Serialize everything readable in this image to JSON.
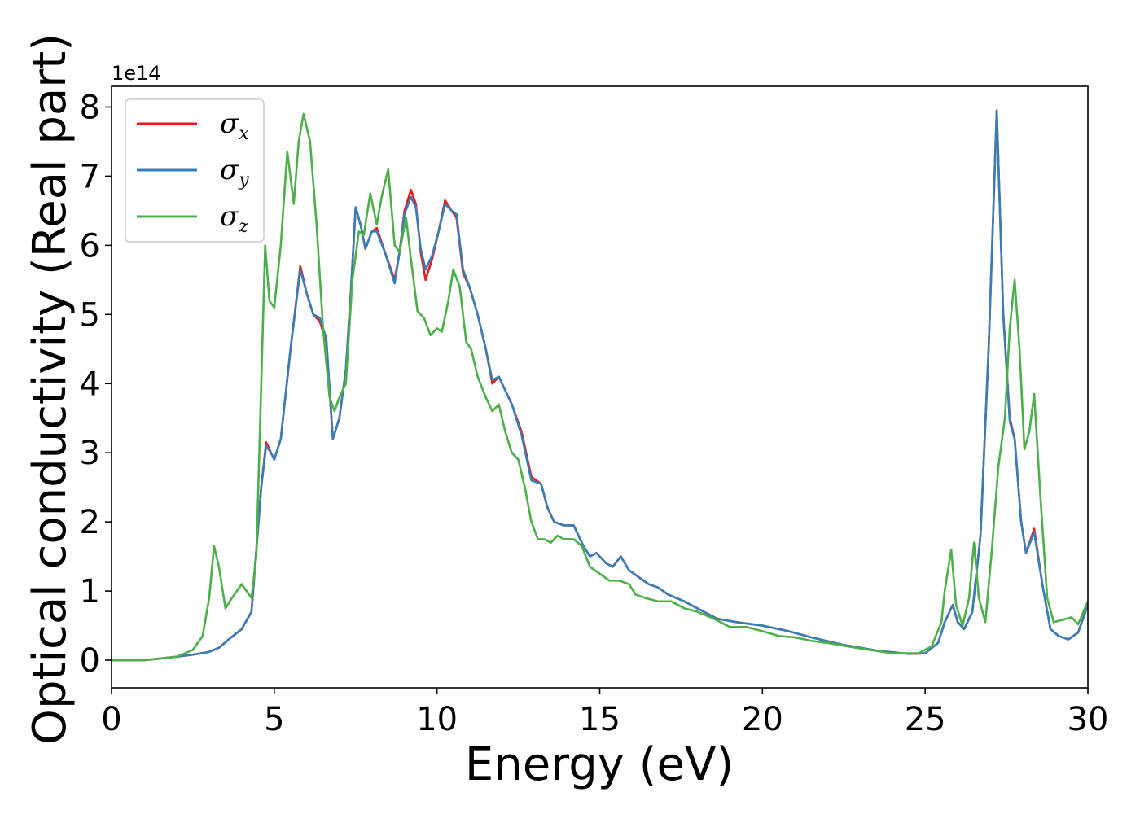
{
  "chart_data": {
    "type": "line",
    "xlabel": "Energy (eV)",
    "ylabel": "Optical conductivity (Real part)",
    "y_offset_label": "1e14",
    "y_multiplier": 100000000000000.0,
    "xlim": [
      0,
      30
    ],
    "ylim": [
      -0.4,
      8.3
    ],
    "x_ticks": [
      0,
      5,
      10,
      15,
      20,
      25,
      30
    ],
    "x_tick_labels": [
      "0",
      "5",
      "10",
      "15",
      "20",
      "25",
      "30"
    ],
    "y_ticks": [
      0,
      1,
      2,
      3,
      4,
      5,
      6,
      7,
      8
    ],
    "y_tick_labels": [
      "0",
      "1",
      "2",
      "3",
      "4",
      "5",
      "6",
      "7",
      "8"
    ],
    "grid": false,
    "legend_position": "top-left",
    "series": [
      {
        "name": "σx",
        "symbol": "σ",
        "subscript": "x",
        "color": "#e41a1c",
        "points": [
          [
            0,
            0
          ],
          [
            1,
            0
          ],
          [
            2,
            0.05
          ],
          [
            2.5,
            0.08
          ],
          [
            3,
            0.12
          ],
          [
            3.3,
            0.18
          ],
          [
            3.6,
            0.3
          ],
          [
            4,
            0.45
          ],
          [
            4.3,
            0.7
          ],
          [
            4.6,
            2.5
          ],
          [
            4.75,
            3.15
          ],
          [
            4.9,
            3.0
          ],
          [
            5.0,
            2.9
          ],
          [
            5.2,
            3.2
          ],
          [
            5.5,
            4.5
          ],
          [
            5.8,
            5.7
          ],
          [
            6.0,
            5.3
          ],
          [
            6.2,
            5.0
          ],
          [
            6.4,
            4.9
          ],
          [
            6.6,
            4.6
          ],
          [
            6.8,
            3.2
          ],
          [
            7.0,
            3.5
          ],
          [
            7.2,
            4.2
          ],
          [
            7.35,
            5.3
          ],
          [
            7.5,
            6.55
          ],
          [
            7.65,
            6.3
          ],
          [
            7.8,
            5.95
          ],
          [
            8.0,
            6.2
          ],
          [
            8.15,
            6.25
          ],
          [
            8.4,
            5.9
          ],
          [
            8.7,
            5.5
          ],
          [
            8.85,
            5.9
          ],
          [
            9.0,
            6.5
          ],
          [
            9.2,
            6.8
          ],
          [
            9.35,
            6.6
          ],
          [
            9.5,
            5.9
          ],
          [
            9.65,
            5.5
          ],
          [
            9.85,
            5.8
          ],
          [
            10.05,
            6.2
          ],
          [
            10.25,
            6.65
          ],
          [
            10.45,
            6.5
          ],
          [
            10.6,
            6.4
          ],
          [
            10.8,
            5.6
          ],
          [
            11.0,
            5.4
          ],
          [
            11.25,
            5.0
          ],
          [
            11.5,
            4.5
          ],
          [
            11.7,
            4.0
          ],
          [
            11.9,
            4.1
          ],
          [
            12.1,
            3.9
          ],
          [
            12.3,
            3.7
          ],
          [
            12.6,
            3.3
          ],
          [
            12.9,
            2.65
          ],
          [
            13.2,
            2.55
          ],
          [
            13.4,
            2.2
          ],
          [
            13.6,
            2.0
          ],
          [
            13.9,
            1.95
          ],
          [
            14.2,
            1.95
          ],
          [
            14.5,
            1.65
          ],
          [
            14.7,
            1.5
          ],
          [
            14.9,
            1.55
          ],
          [
            15.2,
            1.4
          ],
          [
            15.4,
            1.35
          ],
          [
            15.65,
            1.5
          ],
          [
            15.9,
            1.3
          ],
          [
            16.2,
            1.2
          ],
          [
            16.5,
            1.1
          ],
          [
            16.8,
            1.05
          ],
          [
            17.1,
            0.95
          ],
          [
            17.6,
            0.85
          ],
          [
            18.0,
            0.75
          ],
          [
            18.6,
            0.6
          ],
          [
            19.2,
            0.55
          ],
          [
            20.0,
            0.5
          ],
          [
            20.8,
            0.42
          ],
          [
            21.5,
            0.33
          ],
          [
            22.5,
            0.22
          ],
          [
            23.5,
            0.14
          ],
          [
            24.5,
            0.09
          ],
          [
            25.0,
            0.1
          ],
          [
            25.4,
            0.25
          ],
          [
            25.6,
            0.55
          ],
          [
            25.85,
            0.8
          ],
          [
            26.0,
            0.55
          ],
          [
            26.2,
            0.45
          ],
          [
            26.45,
            0.7
          ],
          [
            26.7,
            1.8
          ],
          [
            26.95,
            4.5
          ],
          [
            27.2,
            7.95
          ],
          [
            27.4,
            5.0
          ],
          [
            27.6,
            3.5
          ],
          [
            27.75,
            3.2
          ],
          [
            27.95,
            2.0
          ],
          [
            28.1,
            1.55
          ],
          [
            28.35,
            1.9
          ],
          [
            28.6,
            1.1
          ],
          [
            28.85,
            0.45
          ],
          [
            29.1,
            0.35
          ],
          [
            29.4,
            0.3
          ],
          [
            29.7,
            0.4
          ],
          [
            30.0,
            0.8
          ]
        ]
      },
      {
        "name": "σy",
        "symbol": "σ",
        "subscript": "y",
        "color": "#377eb8",
        "points": [
          [
            0,
            0
          ],
          [
            1,
            0
          ],
          [
            2,
            0.05
          ],
          [
            2.5,
            0.08
          ],
          [
            3,
            0.12
          ],
          [
            3.3,
            0.18
          ],
          [
            3.6,
            0.3
          ],
          [
            4,
            0.45
          ],
          [
            4.3,
            0.7
          ],
          [
            4.6,
            2.5
          ],
          [
            4.75,
            3.1
          ],
          [
            4.9,
            3.0
          ],
          [
            5.0,
            2.9
          ],
          [
            5.2,
            3.2
          ],
          [
            5.5,
            4.5
          ],
          [
            5.8,
            5.65
          ],
          [
            6.0,
            5.3
          ],
          [
            6.2,
            5.0
          ],
          [
            6.4,
            4.95
          ],
          [
            6.6,
            4.65
          ],
          [
            6.8,
            3.2
          ],
          [
            7.0,
            3.5
          ],
          [
            7.2,
            4.2
          ],
          [
            7.35,
            5.3
          ],
          [
            7.5,
            6.55
          ],
          [
            7.65,
            6.3
          ],
          [
            7.8,
            5.95
          ],
          [
            8.0,
            6.2
          ],
          [
            8.15,
            6.2
          ],
          [
            8.4,
            5.9
          ],
          [
            8.7,
            5.45
          ],
          [
            8.85,
            5.9
          ],
          [
            9.0,
            6.45
          ],
          [
            9.2,
            6.7
          ],
          [
            9.35,
            6.55
          ],
          [
            9.5,
            5.95
          ],
          [
            9.65,
            5.65
          ],
          [
            9.85,
            5.85
          ],
          [
            10.05,
            6.2
          ],
          [
            10.25,
            6.6
          ],
          [
            10.45,
            6.5
          ],
          [
            10.6,
            6.45
          ],
          [
            10.8,
            5.65
          ],
          [
            11.0,
            5.4
          ],
          [
            11.25,
            5.0
          ],
          [
            11.5,
            4.5
          ],
          [
            11.7,
            4.05
          ],
          [
            11.9,
            4.1
          ],
          [
            12.1,
            3.9
          ],
          [
            12.3,
            3.7
          ],
          [
            12.6,
            3.25
          ],
          [
            12.9,
            2.6
          ],
          [
            13.2,
            2.55
          ],
          [
            13.4,
            2.2
          ],
          [
            13.6,
            2.0
          ],
          [
            13.9,
            1.95
          ],
          [
            14.2,
            1.95
          ],
          [
            14.5,
            1.65
          ],
          [
            14.7,
            1.5
          ],
          [
            14.9,
            1.55
          ],
          [
            15.2,
            1.4
          ],
          [
            15.4,
            1.35
          ],
          [
            15.65,
            1.5
          ],
          [
            15.9,
            1.3
          ],
          [
            16.2,
            1.2
          ],
          [
            16.5,
            1.1
          ],
          [
            16.8,
            1.05
          ],
          [
            17.1,
            0.95
          ],
          [
            17.6,
            0.85
          ],
          [
            18.0,
            0.75
          ],
          [
            18.6,
            0.6
          ],
          [
            19.2,
            0.55
          ],
          [
            20.0,
            0.5
          ],
          [
            20.8,
            0.42
          ],
          [
            21.5,
            0.33
          ],
          [
            22.5,
            0.22
          ],
          [
            23.5,
            0.14
          ],
          [
            24.5,
            0.09
          ],
          [
            25.0,
            0.1
          ],
          [
            25.4,
            0.25
          ],
          [
            25.6,
            0.55
          ],
          [
            25.85,
            0.8
          ],
          [
            26.0,
            0.55
          ],
          [
            26.2,
            0.45
          ],
          [
            26.45,
            0.7
          ],
          [
            26.7,
            1.8
          ],
          [
            26.95,
            4.5
          ],
          [
            27.2,
            7.95
          ],
          [
            27.4,
            5.0
          ],
          [
            27.6,
            3.45
          ],
          [
            27.75,
            3.2
          ],
          [
            27.95,
            2.0
          ],
          [
            28.1,
            1.55
          ],
          [
            28.35,
            1.85
          ],
          [
            28.6,
            1.1
          ],
          [
            28.85,
            0.45
          ],
          [
            29.1,
            0.35
          ],
          [
            29.4,
            0.3
          ],
          [
            29.7,
            0.4
          ],
          [
            30.0,
            0.8
          ]
        ]
      },
      {
        "name": "σz",
        "symbol": "σ",
        "subscript": "z",
        "color": "#4daf4a",
        "points": [
          [
            0,
            0
          ],
          [
            1,
            0
          ],
          [
            2,
            0.05
          ],
          [
            2.5,
            0.15
          ],
          [
            2.8,
            0.35
          ],
          [
            3.0,
            0.9
          ],
          [
            3.15,
            1.65
          ],
          [
            3.3,
            1.35
          ],
          [
            3.5,
            0.75
          ],
          [
            3.7,
            0.9
          ],
          [
            4.0,
            1.1
          ],
          [
            4.15,
            1.0
          ],
          [
            4.3,
            0.9
          ],
          [
            4.45,
            1.5
          ],
          [
            4.6,
            4.0
          ],
          [
            4.72,
            6.0
          ],
          [
            4.85,
            5.2
          ],
          [
            5.0,
            5.1
          ],
          [
            5.2,
            6.0
          ],
          [
            5.4,
            7.35
          ],
          [
            5.6,
            6.6
          ],
          [
            5.75,
            7.5
          ],
          [
            5.9,
            7.9
          ],
          [
            6.1,
            7.5
          ],
          [
            6.3,
            6.3
          ],
          [
            6.5,
            4.8
          ],
          [
            6.7,
            3.8
          ],
          [
            6.85,
            3.6
          ],
          [
            7.0,
            3.8
          ],
          [
            7.2,
            4.0
          ],
          [
            7.4,
            5.5
          ],
          [
            7.6,
            6.2
          ],
          [
            7.75,
            6.15
          ],
          [
            7.95,
            6.75
          ],
          [
            8.15,
            6.3
          ],
          [
            8.3,
            6.7
          ],
          [
            8.5,
            7.1
          ],
          [
            8.7,
            6.0
          ],
          [
            8.85,
            5.9
          ],
          [
            9.05,
            6.4
          ],
          [
            9.2,
            5.8
          ],
          [
            9.4,
            5.05
          ],
          [
            9.6,
            4.95
          ],
          [
            9.8,
            4.7
          ],
          [
            10.0,
            4.8
          ],
          [
            10.15,
            4.75
          ],
          [
            10.35,
            5.2
          ],
          [
            10.5,
            5.65
          ],
          [
            10.7,
            5.4
          ],
          [
            10.9,
            4.6
          ],
          [
            11.05,
            4.5
          ],
          [
            11.25,
            4.1
          ],
          [
            11.5,
            3.8
          ],
          [
            11.7,
            3.6
          ],
          [
            11.9,
            3.7
          ],
          [
            12.1,
            3.3
          ],
          [
            12.3,
            3.0
          ],
          [
            12.5,
            2.9
          ],
          [
            12.7,
            2.5
          ],
          [
            12.9,
            2.0
          ],
          [
            13.1,
            1.75
          ],
          [
            13.3,
            1.75
          ],
          [
            13.5,
            1.7
          ],
          [
            13.7,
            1.8
          ],
          [
            13.9,
            1.75
          ],
          [
            14.2,
            1.75
          ],
          [
            14.45,
            1.65
          ],
          [
            14.7,
            1.35
          ],
          [
            15.0,
            1.25
          ],
          [
            15.3,
            1.15
          ],
          [
            15.6,
            1.15
          ],
          [
            15.9,
            1.1
          ],
          [
            16.1,
            0.95
          ],
          [
            16.4,
            0.9
          ],
          [
            16.8,
            0.85
          ],
          [
            17.2,
            0.85
          ],
          [
            17.6,
            0.75
          ],
          [
            18.0,
            0.7
          ],
          [
            18.5,
            0.6
          ],
          [
            19.0,
            0.48
          ],
          [
            19.5,
            0.48
          ],
          [
            20.0,
            0.42
          ],
          [
            20.5,
            0.35
          ],
          [
            21.0,
            0.33
          ],
          [
            21.5,
            0.28
          ],
          [
            22.0,
            0.25
          ],
          [
            23.0,
            0.17
          ],
          [
            24.0,
            0.1
          ],
          [
            24.8,
            0.1
          ],
          [
            25.2,
            0.2
          ],
          [
            25.5,
            0.55
          ],
          [
            25.6,
            1.0
          ],
          [
            25.8,
            1.6
          ],
          [
            25.95,
            0.8
          ],
          [
            26.15,
            0.5
          ],
          [
            26.35,
            0.9
          ],
          [
            26.5,
            1.7
          ],
          [
            26.65,
            0.9
          ],
          [
            26.85,
            0.55
          ],
          [
            27.05,
            1.6
          ],
          [
            27.25,
            2.8
          ],
          [
            27.45,
            3.5
          ],
          [
            27.6,
            4.8
          ],
          [
            27.75,
            5.5
          ],
          [
            27.9,
            4.5
          ],
          [
            28.05,
            3.05
          ],
          [
            28.2,
            3.3
          ],
          [
            28.35,
            3.85
          ],
          [
            28.55,
            2.3
          ],
          [
            28.75,
            0.9
          ],
          [
            28.95,
            0.55
          ],
          [
            29.2,
            0.58
          ],
          [
            29.5,
            0.62
          ],
          [
            29.7,
            0.52
          ],
          [
            30.0,
            0.85
          ]
        ]
      }
    ]
  }
}
